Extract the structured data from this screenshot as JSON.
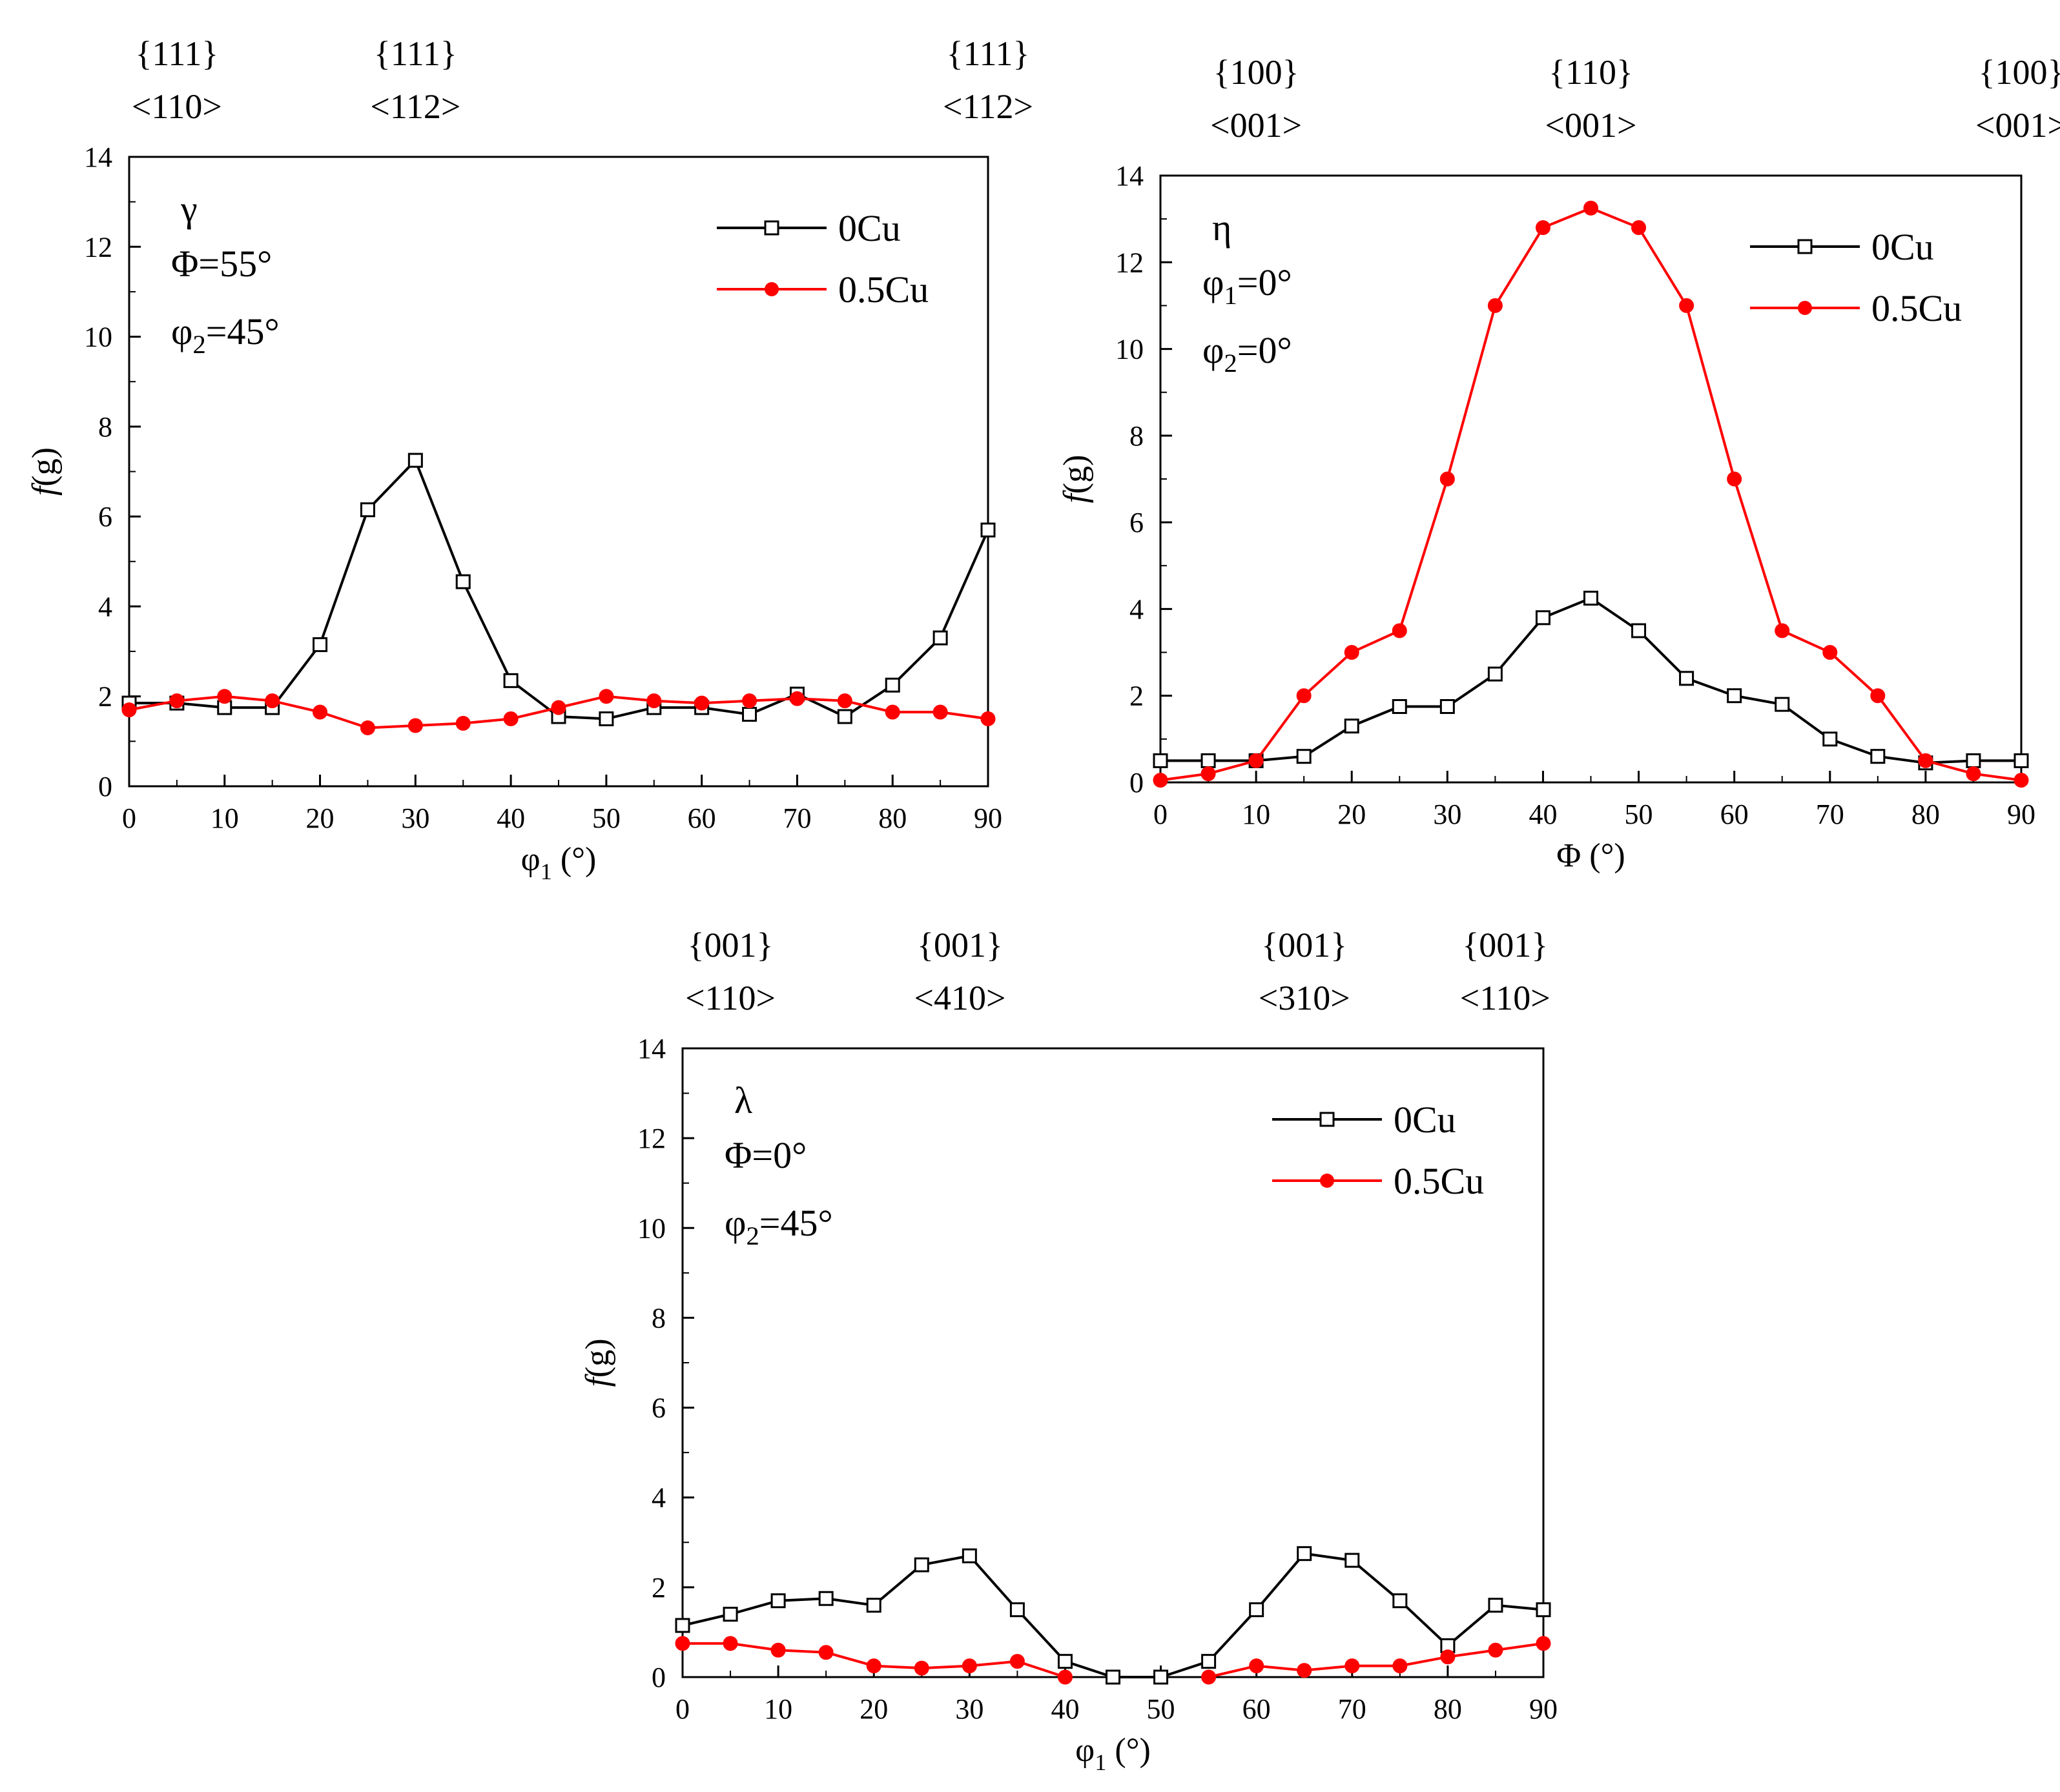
{
  "chart_data": [
    {
      "panel": "gamma",
      "type": "line",
      "xlabel": "φ1 (°)",
      "ylabel": "f(g)",
      "xlim": [
        0,
        90
      ],
      "ylim": [
        0,
        14
      ],
      "xticks": [
        0,
        10,
        20,
        30,
        40,
        50,
        60,
        70,
        80,
        90
      ],
      "yticks": [
        0,
        2,
        4,
        6,
        8,
        10,
        12,
        14
      ],
      "annotation": [
        "γ",
        "Φ=55°",
        "φ2=45°"
      ],
      "legend_position": "top-right",
      "texture_labels": [
        {
          "x": 5,
          "plane": "{111}",
          "dir": "<110>"
        },
        {
          "x": 30,
          "plane": "{111}",
          "dir": "<112>"
        },
        {
          "x": 90,
          "plane": "{111}",
          "dir": "<112>"
        }
      ],
      "x": [
        0,
        5,
        10,
        15,
        20,
        25,
        30,
        35,
        40,
        45,
        50,
        55,
        60,
        65,
        70,
        75,
        80,
        85,
        90
      ],
      "series": [
        {
          "name": "0Cu",
          "color": "#000000",
          "marker": "open-square",
          "values": [
            1.85,
            1.85,
            1.75,
            1.75,
            3.15,
            6.15,
            7.25,
            4.55,
            2.35,
            1.55,
            1.5,
            1.75,
            1.75,
            1.6,
            2.05,
            1.55,
            2.25,
            3.3,
            5.7
          ]
        },
        {
          "name": "0.5Cu",
          "color": "#ff0000",
          "marker": "filled-circle",
          "values": [
            1.7,
            1.9,
            2.0,
            1.9,
            1.65,
            1.3,
            1.35,
            1.4,
            1.5,
            1.75,
            2.0,
            1.9,
            1.85,
            1.9,
            1.95,
            1.9,
            1.65,
            1.65,
            1.5
          ]
        }
      ]
    },
    {
      "panel": "eta",
      "type": "line",
      "xlabel": "Φ (°)",
      "ylabel": "f(g)",
      "xlim": [
        0,
        90
      ],
      "ylim": [
        0,
        14
      ],
      "xticks": [
        0,
        10,
        20,
        30,
        40,
        50,
        60,
        70,
        80,
        90
      ],
      "yticks": [
        0,
        2,
        4,
        6,
        8,
        10,
        12,
        14
      ],
      "annotation": [
        "η",
        "φ1=0°",
        "φ2=0°"
      ],
      "legend_position": "top-right",
      "texture_labels": [
        {
          "x": 10,
          "plane": "{100}",
          "dir": "<001>"
        },
        {
          "x": 45,
          "plane": "{110}",
          "dir": "<001>"
        },
        {
          "x": 90,
          "plane": "{100}",
          "dir": "<001>"
        }
      ],
      "x": [
        0,
        5,
        10,
        15,
        20,
        25,
        30,
        35,
        40,
        45,
        50,
        55,
        60,
        65,
        70,
        75,
        80,
        85,
        90
      ],
      "series": [
        {
          "name": "0Cu",
          "color": "#000000",
          "marker": "open-square",
          "values": [
            0.5,
            0.5,
            0.5,
            0.6,
            1.3,
            1.75,
            1.75,
            2.5,
            3.8,
            4.25,
            3.5,
            2.4,
            2.0,
            1.8,
            1.0,
            0.6,
            0.45,
            0.5,
            0.5
          ]
        },
        {
          "name": "0.5Cu",
          "color": "#ff0000",
          "marker": "filled-circle",
          "values": [
            0.05,
            0.2,
            0.5,
            2.0,
            3.0,
            3.5,
            7.0,
            11.0,
            12.8,
            13.25,
            12.8,
            11.0,
            7.0,
            3.5,
            3.0,
            2.0,
            0.5,
            0.2,
            0.05
          ]
        }
      ]
    },
    {
      "panel": "lambda",
      "type": "line",
      "xlabel": "φ1 (°)",
      "ylabel": "f(g)",
      "xlim": [
        0,
        90
      ],
      "ylim": [
        0,
        14
      ],
      "xticks": [
        0,
        10,
        20,
        30,
        40,
        50,
        60,
        70,
        80,
        90
      ],
      "yticks": [
        0,
        2,
        4,
        6,
        8,
        10,
        12,
        14
      ],
      "annotation": [
        "λ",
        "Φ=0°",
        "φ2=45°"
      ],
      "legend_position": "top-right",
      "texture_labels": [
        {
          "x": 5,
          "plane": "{001}",
          "dir": "<110>"
        },
        {
          "x": 29,
          "plane": "{001}",
          "dir": "<410>"
        },
        {
          "x": 65,
          "plane": "{001}",
          "dir": "<310>"
        },
        {
          "x": 86,
          "plane": "{001}",
          "dir": "<110>"
        }
      ],
      "x": [
        0,
        5,
        10,
        15,
        20,
        25,
        30,
        35,
        40,
        45,
        50,
        55,
        60,
        65,
        70,
        75,
        80,
        85,
        90
      ],
      "series": [
        {
          "name": "0Cu",
          "color": "#000000",
          "marker": "open-square",
          "values": [
            1.15,
            1.4,
            1.7,
            1.75,
            1.6,
            2.5,
            2.7,
            1.5,
            0.35,
            0.0,
            0.0,
            0.35,
            1.5,
            2.75,
            2.6,
            1.7,
            0.7,
            1.6,
            1.5
          ]
        },
        {
          "name": "0.5Cu",
          "color": "#ff0000",
          "marker": "filled-circle",
          "values": [
            0.75,
            0.75,
            0.6,
            0.55,
            0.25,
            0.2,
            0.25,
            0.35,
            0.0,
            null,
            null,
            0.0,
            0.25,
            0.15,
            0.25,
            0.25,
            0.45,
            0.6,
            0.75
          ]
        }
      ]
    }
  ]
}
